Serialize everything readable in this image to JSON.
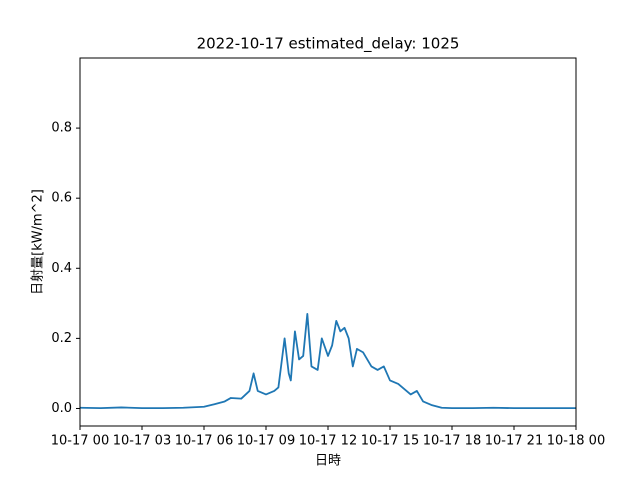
{
  "chart_data": {
    "type": "line",
    "title": "2022-10-17 estimated_delay: 1025",
    "x_label": "日時",
    "y_label": "日射量[kW/m^2]",
    "x": [
      0,
      1,
      2,
      3,
      4,
      5,
      6,
      6.5,
      7,
      7.3,
      7.8,
      8.2,
      8.4,
      8.6,
      9,
      9.4,
      9.6,
      9.9,
      10.1,
      10.2,
      10.4,
      10.6,
      10.8,
      11.0,
      11.2,
      11.5,
      11.7,
      12.0,
      12.2,
      12.4,
      12.6,
      12.8,
      13.0,
      13.2,
      13.4,
      13.7,
      13.9,
      14.1,
      14.4,
      14.7,
      15.0,
      15.4,
      15.8,
      16.0,
      16.3,
      16.6,
      17,
      17.5,
      18,
      19,
      20,
      21,
      22,
      23,
      24
    ],
    "series": [
      {
        "name": "日射量",
        "color": "#1f77b4",
        "values": [
          0.002,
          0.001,
          0.003,
          0.001,
          0.001,
          0.002,
          0.005,
          0.012,
          0.02,
          0.03,
          0.028,
          0.05,
          0.1,
          0.05,
          0.04,
          0.05,
          0.06,
          0.2,
          0.1,
          0.08,
          0.22,
          0.14,
          0.15,
          0.27,
          0.12,
          0.11,
          0.2,
          0.15,
          0.18,
          0.25,
          0.22,
          0.23,
          0.2,
          0.12,
          0.17,
          0.16,
          0.14,
          0.12,
          0.11,
          0.12,
          0.08,
          0.07,
          0.05,
          0.04,
          0.05,
          0.02,
          0.01,
          0.002,
          0.001,
          0.001,
          0.002,
          0.001,
          0.001,
          0.001,
          0.001
        ]
      }
    ],
    "xlim": [
      0,
      24
    ],
    "xticks": [
      {
        "value": 0,
        "label": "10-17 00"
      },
      {
        "value": 3,
        "label": "10-17 03"
      },
      {
        "value": 6,
        "label": "10-17 06"
      },
      {
        "value": 9,
        "label": "10-17 09"
      },
      {
        "value": 12,
        "label": "10-17 12"
      },
      {
        "value": 15,
        "label": "10-17 15"
      },
      {
        "value": 18,
        "label": "10-17 18"
      },
      {
        "value": 21,
        "label": "10-17 21"
      },
      {
        "value": 24,
        "label": "10-18 00"
      }
    ],
    "ylim": [
      -0.05,
      1.0
    ],
    "yticks": [
      {
        "value": 0,
        "label": "0.0"
      },
      0.2,
      0.4,
      0.6,
      0.8
    ]
  }
}
